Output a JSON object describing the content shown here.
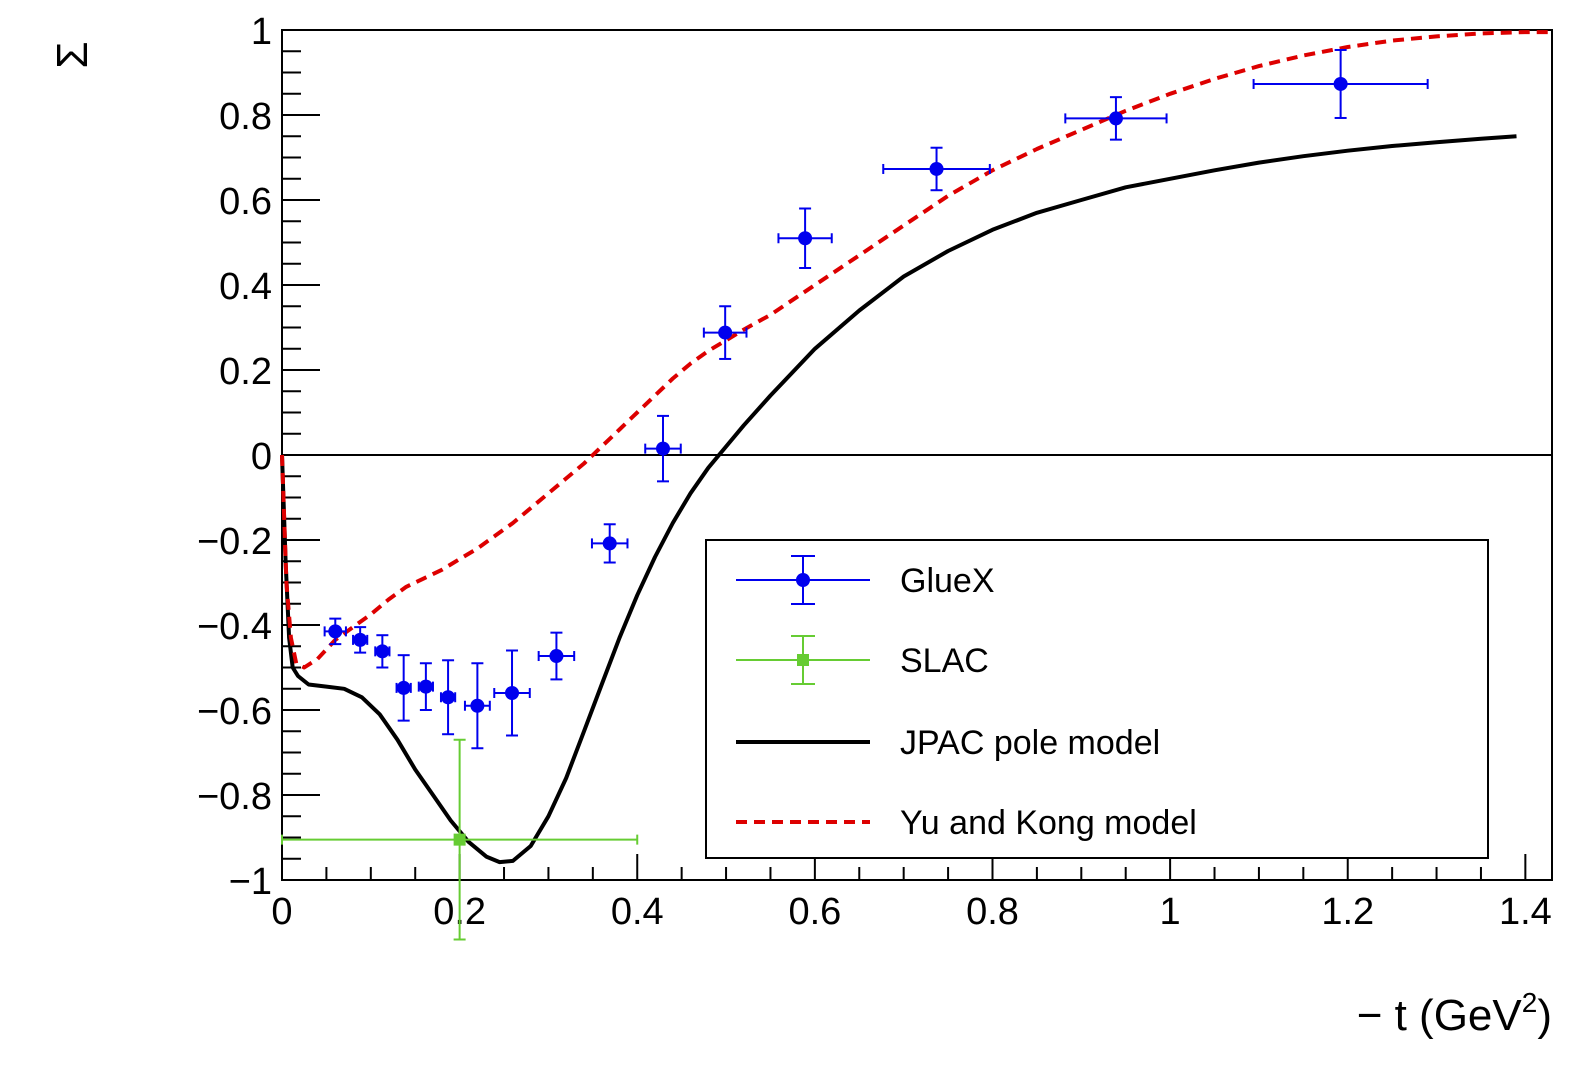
{
  "chart_data": {
    "type": "scatter",
    "title": "",
    "xlabel": "− t (GeV",
    "xlabel_sup": "2",
    "xlabel_tail": ")",
    "ylabel": "Σ",
    "xlim": [
      0,
      1.43
    ],
    "ylim": [
      -1,
      1
    ],
    "x_ticks": [
      {
        "value": 0,
        "label": "0"
      },
      {
        "value": 0.2,
        "label": "0.2"
      },
      {
        "value": 0.4,
        "label": "0.4"
      },
      {
        "value": 0.6,
        "label": "0.6"
      },
      {
        "value": 0.8,
        "label": "0.8"
      },
      {
        "value": 1.0,
        "label": "1"
      },
      {
        "value": 1.2,
        "label": "1.2"
      },
      {
        "value": 1.4,
        "label": "1.4"
      }
    ],
    "y_ticks": [
      {
        "value": 1,
        "label": "1"
      },
      {
        "value": 0.8,
        "label": "0.8"
      },
      {
        "value": 0.6,
        "label": "0.6"
      },
      {
        "value": 0.4,
        "label": "0.4"
      },
      {
        "value": 0.2,
        "label": "0.2"
      },
      {
        "value": 0,
        "label": "0"
      },
      {
        "value": -0.2,
        "label": "−0.2"
      },
      {
        "value": -0.4,
        "label": "−0.4"
      },
      {
        "value": -0.6,
        "label": "−0.6"
      },
      {
        "value": -0.8,
        "label": "−0.8"
      },
      {
        "value": -1,
        "label": "−1"
      }
    ],
    "zero_line": true,
    "grid": false,
    "legend_position": "bottom-right",
    "series": [
      {
        "name": "GlueX",
        "kind": "points",
        "color": "#0000ee",
        "marker": "circle",
        "points": [
          {
            "x": 0.06,
            "y": -0.415,
            "xerr": 0.012,
            "yerr": 0.03
          },
          {
            "x": 0.088,
            "y": -0.435,
            "xerr": 0.008,
            "yerr": 0.03
          },
          {
            "x": 0.113,
            "y": -0.462,
            "xerr": 0.008,
            "yerr": 0.038
          },
          {
            "x": 0.137,
            "y": -0.548,
            "xerr": 0.008,
            "yerr": 0.077
          },
          {
            "x": 0.162,
            "y": -0.545,
            "xerr": 0.008,
            "yerr": 0.055
          },
          {
            "x": 0.187,
            "y": -0.57,
            "xerr": 0.008,
            "yerr": 0.087
          },
          {
            "x": 0.22,
            "y": -0.59,
            "xerr": 0.014,
            "yerr": 0.1
          },
          {
            "x": 0.259,
            "y": -0.56,
            "xerr": 0.02,
            "yerr": 0.1
          },
          {
            "x": 0.309,
            "y": -0.473,
            "xerr": 0.02,
            "yerr": 0.055
          },
          {
            "x": 0.369,
            "y": -0.208,
            "xerr": 0.02,
            "yerr": 0.045
          },
          {
            "x": 0.429,
            "y": 0.015,
            "xerr": 0.02,
            "yerr": 0.077
          },
          {
            "x": 0.499,
            "y": 0.288,
            "xerr": 0.024,
            "yerr": 0.062
          },
          {
            "x": 0.589,
            "y": 0.51,
            "xerr": 0.03,
            "yerr": 0.07
          },
          {
            "x": 0.737,
            "y": 0.673,
            "xerr": 0.06,
            "yerr": 0.05
          },
          {
            "x": 0.939,
            "y": 0.792,
            "xerr": 0.057,
            "yerr": 0.05
          },
          {
            "x": 1.192,
            "y": 0.873,
            "xerr": 0.098,
            "yerr": 0.08
          }
        ]
      },
      {
        "name": "SLAC",
        "kind": "points",
        "color": "#66cc33",
        "marker": "square",
        "points": [
          {
            "x": 0.2,
            "y": -0.905,
            "xerr": 0.2,
            "yerr": 0.235
          }
        ]
      },
      {
        "name": "JPAC pole model",
        "kind": "line",
        "color": "#000000",
        "dash": "solid",
        "points": [
          [
            0.0,
            0.0
          ],
          [
            0.004,
            -0.25
          ],
          [
            0.008,
            -0.43
          ],
          [
            0.012,
            -0.5
          ],
          [
            0.018,
            -0.52
          ],
          [
            0.03,
            -0.54
          ],
          [
            0.05,
            -0.545
          ],
          [
            0.07,
            -0.55
          ],
          [
            0.09,
            -0.57
          ],
          [
            0.11,
            -0.61
          ],
          [
            0.13,
            -0.67
          ],
          [
            0.15,
            -0.74
          ],
          [
            0.17,
            -0.8
          ],
          [
            0.19,
            -0.86
          ],
          [
            0.21,
            -0.91
          ],
          [
            0.23,
            -0.945
          ],
          [
            0.245,
            -0.958
          ],
          [
            0.26,
            -0.955
          ],
          [
            0.28,
            -0.92
          ],
          [
            0.3,
            -0.85
          ],
          [
            0.32,
            -0.76
          ],
          [
            0.34,
            -0.65
          ],
          [
            0.36,
            -0.54
          ],
          [
            0.38,
            -0.43
          ],
          [
            0.4,
            -0.33
          ],
          [
            0.42,
            -0.24
          ],
          [
            0.44,
            -0.16
          ],
          [
            0.46,
            -0.09
          ],
          [
            0.48,
            -0.03
          ],
          [
            0.5,
            0.02
          ],
          [
            0.52,
            0.07
          ],
          [
            0.55,
            0.14
          ],
          [
            0.6,
            0.25
          ],
          [
            0.65,
            0.34
          ],
          [
            0.7,
            0.42
          ],
          [
            0.75,
            0.48
          ],
          [
            0.8,
            0.53
          ],
          [
            0.85,
            0.57
          ],
          [
            0.9,
            0.6
          ],
          [
            0.95,
            0.63
          ],
          [
            1.0,
            0.65
          ],
          [
            1.05,
            0.67
          ],
          [
            1.1,
            0.688
          ],
          [
            1.15,
            0.703
          ],
          [
            1.2,
            0.716
          ],
          [
            1.25,
            0.727
          ],
          [
            1.3,
            0.736
          ],
          [
            1.35,
            0.744
          ],
          [
            1.39,
            0.75
          ]
        ]
      },
      {
        "name": "Yu and Kong model",
        "kind": "line",
        "color": "#dd0000",
        "dash": "dashed",
        "points": [
          [
            0.0,
            0.0
          ],
          [
            0.005,
            -0.3
          ],
          [
            0.01,
            -0.43
          ],
          [
            0.016,
            -0.49
          ],
          [
            0.025,
            -0.5
          ],
          [
            0.04,
            -0.48
          ],
          [
            0.06,
            -0.435
          ],
          [
            0.08,
            -0.405
          ],
          [
            0.1,
            -0.375
          ],
          [
            0.12,
            -0.34
          ],
          [
            0.14,
            -0.31
          ],
          [
            0.16,
            -0.29
          ],
          [
            0.18,
            -0.27
          ],
          [
            0.2,
            -0.245
          ],
          [
            0.22,
            -0.22
          ],
          [
            0.24,
            -0.19
          ],
          [
            0.26,
            -0.16
          ],
          [
            0.28,
            -0.125
          ],
          [
            0.3,
            -0.09
          ],
          [
            0.32,
            -0.055
          ],
          [
            0.34,
            -0.02
          ],
          [
            0.36,
            0.02
          ],
          [
            0.38,
            0.06
          ],
          [
            0.4,
            0.1
          ],
          [
            0.42,
            0.14
          ],
          [
            0.44,
            0.18
          ],
          [
            0.46,
            0.215
          ],
          [
            0.48,
            0.245
          ],
          [
            0.5,
            0.27
          ],
          [
            0.52,
            0.295
          ],
          [
            0.55,
            0.33
          ],
          [
            0.6,
            0.4
          ],
          [
            0.65,
            0.47
          ],
          [
            0.7,
            0.54
          ],
          [
            0.75,
            0.61
          ],
          [
            0.8,
            0.67
          ],
          [
            0.85,
            0.72
          ],
          [
            0.9,
            0.765
          ],
          [
            0.95,
            0.81
          ],
          [
            1.0,
            0.85
          ],
          [
            1.05,
            0.885
          ],
          [
            1.1,
            0.915
          ],
          [
            1.15,
            0.94
          ],
          [
            1.2,
            0.96
          ],
          [
            1.25,
            0.975
          ],
          [
            1.3,
            0.985
          ],
          [
            1.35,
            0.992
          ],
          [
            1.4,
            0.995
          ],
          [
            1.43,
            0.995
          ]
        ]
      }
    ]
  }
}
